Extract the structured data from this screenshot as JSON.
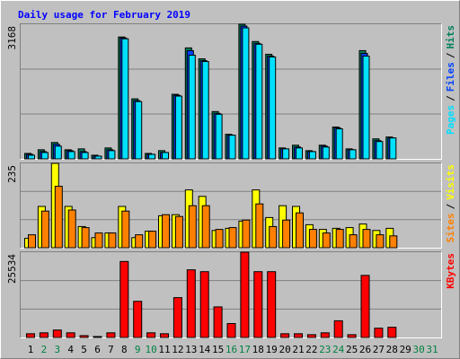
{
  "chart_data": {
    "type": "bar",
    "title": "Daily usage for February 2019",
    "categories": [
      "1",
      "2",
      "3",
      "4",
      "5",
      "6",
      "7",
      "8",
      "9",
      "10",
      "11",
      "12",
      "13",
      "14",
      "15",
      "16",
      "17",
      "18",
      "19",
      "20",
      "21",
      "22",
      "23",
      "24",
      "25",
      "26",
      "27",
      "28",
      "29",
      "30",
      "31"
    ],
    "category_colors": [
      "#000000",
      "#008040",
      "#008040",
      "#000000",
      "#000000",
      "#000000",
      "#000000",
      "#000000",
      "#008040",
      "#008040",
      "#000000",
      "#000000",
      "#000000",
      "#000000",
      "#000000",
      "#008040",
      "#008040",
      "#000000",
      "#000000",
      "#000000",
      "#000000",
      "#000000",
      "#008040",
      "#008040",
      "#000000",
      "#000000",
      "#000000",
      "#000000",
      "#000000",
      "#008040",
      "#008040"
    ],
    "legend_separator": "/",
    "grid": true,
    "panels": [
      {
        "ylim": [
          0,
          3168
        ],
        "yticks": [
          {
            "value": 1056,
            "label": null
          },
          {
            "value": 2112,
            "label": null
          },
          3168
        ],
        "series": [
          {
            "name": "Hits",
            "color": "#00805c",
            "values": [
              128,
              214,
              385,
              214,
              235,
              86,
              257,
              2868,
              1412,
              128,
              193,
              1519,
              2611,
              2354,
              1113,
              578,
              3168,
              2761,
              2461,
              257,
              321,
              193,
              321,
              749,
              235,
              2547,
              471,
              514,
              null,
              null,
              null
            ]
          },
          {
            "name": "Files",
            "color": "#0040ff",
            "values": [
              107,
              171,
              342,
              193,
              171,
              64,
              214,
              2846,
              1370,
              107,
              150,
              1498,
              2547,
              2311,
              1070,
              556,
              3124,
              2718,
              2418,
              235,
              278,
              171,
              300,
              728,
              214,
              2482,
              428,
              492,
              null,
              null,
              null
            ]
          },
          {
            "name": "Pages",
            "color": "#00e0ff",
            "values": [
              86,
              150,
              300,
              171,
              150,
              64,
              193,
              2825,
              1348,
              107,
              150,
              1477,
              2440,
              2290,
              1049,
              556,
              3082,
              2697,
              2397,
              235,
              257,
              171,
              278,
              706,
              214,
              2418,
              407,
              492,
              null,
              null,
              null
            ]
          }
        ]
      },
      {
        "ylim": [
          0,
          235
        ],
        "yticks": [
          {
            "value": 78,
            "label": null
          },
          {
            "value": 157,
            "label": null
          },
          235
        ],
        "series": [
          {
            "name": "Visits",
            "color": "#ffff00",
            "values": [
              26,
              115,
              235,
              115,
              59,
              28,
              41,
              115,
              28,
              46,
              89,
              92,
              161,
              143,
              48,
              54,
              74,
              161,
              84,
              117,
              115,
              64,
              51,
              54,
              56,
              66,
              48,
              54,
              null,
              null,
              null
            ]
          },
          {
            "name": "Sites",
            "color": "#ff8000",
            "values": [
              36,
              102,
              171,
              105,
              56,
              41,
              41,
              102,
              36,
              46,
              92,
              87,
              117,
              117,
              51,
              56,
              77,
              122,
              59,
              77,
              97,
              51,
              41,
              51,
              36,
              51,
              36,
              33,
              null,
              null,
              null
            ]
          }
        ]
      },
      {
        "ylim": [
          0,
          25534
        ],
        "yticks": [
          {
            "value": 8511,
            "label": null
          },
          {
            "value": 17023,
            "label": null
          },
          25534
        ],
        "series": [
          {
            "name": "KBytes",
            "color": "#ff0000",
            "values": [
              1110,
              1388,
              2220,
              1388,
              555,
              278,
              1388,
              22755,
              10823,
              1388,
              1110,
              11933,
              20258,
              19703,
              9158,
              4163,
              25534,
              19703,
              19703,
              1110,
              1110,
              833,
              1388,
              4995,
              833,
              18593,
              2775,
              3053,
              null,
              null,
              null
            ]
          }
        ]
      }
    ]
  }
}
